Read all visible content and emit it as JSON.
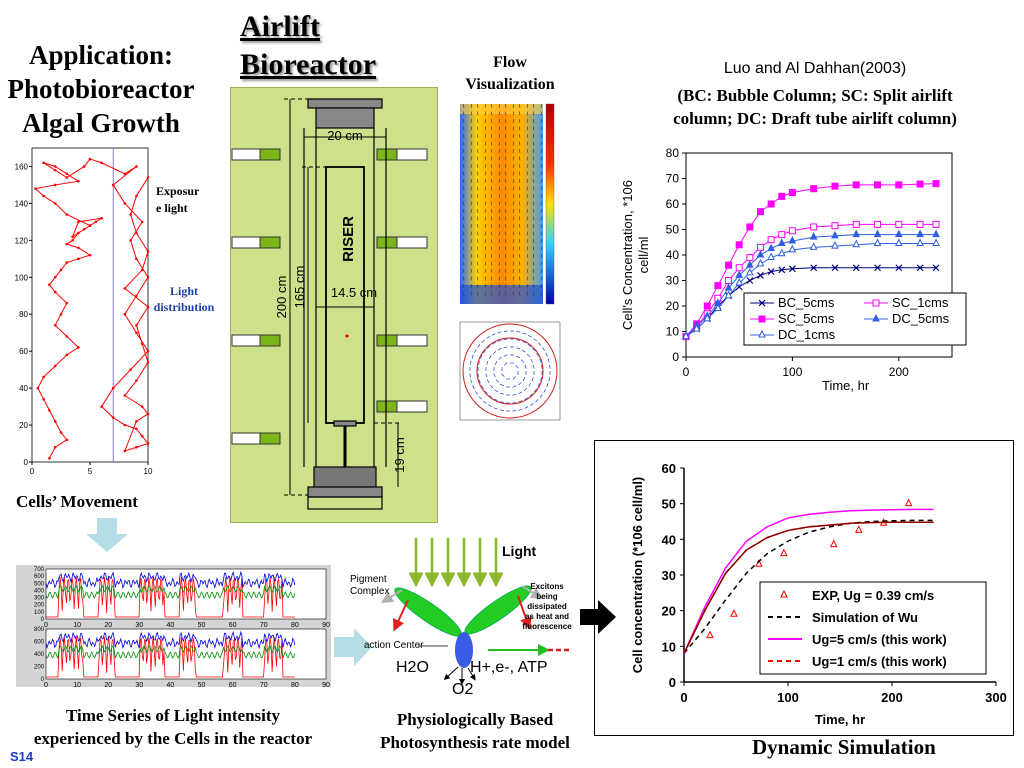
{
  "app_title": {
    "line1": "Application:",
    "line2": "Photobioreactor",
    "line3": "Algal Growth"
  },
  "reactor_title": {
    "line1": "Airlift",
    "line2": "Bioreactor"
  },
  "flow_viz": {
    "line1": "Flow",
    "line2": "Visualization"
  },
  "reference": {
    "author": "Luo and Al Dahhan(2003)",
    "line2": "(BC: Bubble Column; SC: Split airlift",
    "line3": "column; DC: Draft tube airlift column)"
  },
  "exposure_label": {
    "line1": "Exposur",
    "line2": "e light"
  },
  "light_dist_label": {
    "line1": "Light",
    "line2": "distribution"
  },
  "cells_movement": "Cells’ Movement",
  "time_series_caption": {
    "line1": "Time Series of Light intensity",
    "line2": "experienced by the Cells in the reactor"
  },
  "slide_number": "S14",
  "physio_caption": {
    "line1": "Physiologically Based",
    "line2": "Photosynthesis rate model"
  },
  "dynamic_simulation": "Dynamic Simulation",
  "reactor_labels": {
    "riser": "RISER",
    "d20": "20 cm",
    "d14": "14.5 cm",
    "h200": "200 cm",
    "h165": "165 cm",
    "h19": "19 cm"
  },
  "photosynthesis": {
    "light": "Light",
    "pigment1": "Pigment",
    "pigment2": "Complex",
    "reaction_center": "action Center",
    "excitons": [
      "Excitons",
      "being",
      "dissipated",
      "as heat and",
      "fluorescence"
    ],
    "h2o": "H2O",
    "products": "H+,e-, ATP",
    "o2": "O2"
  },
  "colors": {
    "reactor_bg": "#cde08a",
    "lamp_green": "#7cb518",
    "magenta": "#ff00ff",
    "blue": "#0000cc",
    "red": "#ff0000",
    "arrow_blue": "#b4dde6"
  },
  "chart_data": [
    {
      "type": "line",
      "title": "",
      "xlabel": "Time, hr",
      "ylabel": "Cell's Concentration, *106 cell/ml",
      "xlim": [
        0,
        250
      ],
      "ylim": [
        0,
        80
      ],
      "xticks": [
        0,
        100,
        200
      ],
      "yticks": [
        0,
        10,
        20,
        30,
        40,
        50,
        60,
        70,
        80
      ],
      "legend": "bottom-right",
      "series": [
        {
          "name": "BC_5cms",
          "marker": "x",
          "color": "#000080",
          "x": [
            0,
            10,
            20,
            30,
            40,
            50,
            60,
            70,
            80,
            90,
            100,
            120,
            140,
            160,
            180,
            200,
            220,
            235
          ],
          "y": [
            8,
            11,
            15,
            20,
            24,
            27.5,
            30,
            32,
            33.5,
            34.2,
            34.6,
            35,
            35,
            35,
            35,
            35,
            35,
            35
          ]
        },
        {
          "name": "SC_1cms",
          "marker": "square-open",
          "color": "#ff00ff",
          "x": [
            0,
            10,
            20,
            30,
            40,
            50,
            60,
            70,
            80,
            90,
            100,
            120,
            140,
            160,
            180,
            200,
            220,
            235
          ],
          "y": [
            8,
            12,
            17,
            23,
            30,
            35,
            39,
            43,
            46,
            48,
            49.5,
            51,
            51.5,
            52,
            52,
            52,
            52,
            52
          ]
        },
        {
          "name": "SC_5cms",
          "marker": "square",
          "color": "#ff00ff",
          "x": [
            0,
            10,
            20,
            30,
            40,
            50,
            60,
            70,
            80,
            90,
            100,
            120,
            140,
            160,
            180,
            200,
            220,
            235
          ],
          "y": [
            8,
            13,
            20,
            28,
            36,
            44,
            51,
            57,
            60,
            63,
            64.5,
            66,
            67,
            67.5,
            67.5,
            67.5,
            67.8,
            68
          ]
        },
        {
          "name": "DC_5cms",
          "marker": "triangle",
          "color": "#3060e0",
          "x": [
            0,
            10,
            20,
            30,
            40,
            50,
            60,
            70,
            80,
            90,
            100,
            120,
            140,
            160,
            180,
            200,
            220,
            235
          ],
          "y": [
            8,
            12,
            16,
            21,
            27,
            32,
            36,
            40,
            42.5,
            44.5,
            45.5,
            47,
            47.5,
            48,
            48,
            48,
            48,
            48
          ]
        },
        {
          "name": "DC_1cms",
          "marker": "triangle-open",
          "color": "#3060e0",
          "x": [
            0,
            10,
            20,
            30,
            40,
            50,
            60,
            70,
            80,
            90,
            100,
            120,
            140,
            160,
            180,
            200,
            220,
            235
          ],
          "y": [
            8,
            11,
            15,
            19,
            24,
            29,
            33,
            36.5,
            39,
            40.5,
            42,
            43,
            43.5,
            44,
            44.5,
            44.5,
            44.5,
            44.5
          ]
        }
      ]
    },
    {
      "type": "line",
      "title": "",
      "xlabel": "Time, hr",
      "ylabel": "Cell  concentration (*106 cell/ml)",
      "xlim": [
        0,
        300
      ],
      "ylim": [
        0,
        60
      ],
      "xticks": [
        0,
        100,
        200,
        300
      ],
      "yticks": [
        0,
        10,
        20,
        30,
        40,
        50,
        60
      ],
      "legend": "bottom-right",
      "series": [
        {
          "name": "EXP, Ug = 0.39 cm/s",
          "marker": "triangle-open",
          "color": "#ff0000",
          "x": [
            25,
            48,
            72,
            96,
            144,
            168,
            192,
            216
          ],
          "y": [
            13,
            19,
            33,
            36,
            38.5,
            42.5,
            44.5,
            50
          ]
        },
        {
          "name": "Simulation of Wu",
          "style": "dashed",
          "color": "#000000",
          "x": [
            0,
            20,
            40,
            60,
            80,
            100,
            120,
            140,
            160,
            180,
            200,
            220,
            240
          ],
          "y": [
            8,
            15,
            23,
            30.5,
            36,
            39.5,
            42,
            43.5,
            44.5,
            45,
            45.2,
            45.3,
            45.3
          ]
        },
        {
          "name": "Ug=5 cm/s (this work)",
          "style": "solid",
          "color": "#ff00ff",
          "x": [
            0,
            20,
            40,
            60,
            80,
            100,
            120,
            140,
            160,
            180,
            200,
            220,
            240
          ],
          "y": [
            8,
            21,
            32,
            39.5,
            43.5,
            46,
            47,
            47.6,
            48,
            48.2,
            48.3,
            48.4,
            48.4
          ]
        },
        {
          "name": "Ug=1 cm/s (this work)",
          "style": "dashed",
          "color": "#ff0000",
          "x": [
            0,
            20,
            40,
            60,
            80,
            100,
            120,
            140,
            160,
            180,
            200,
            220,
            240
          ],
          "y": [
            8,
            20,
            30.5,
            37,
            40.5,
            42.5,
            43.5,
            44,
            44.5,
            44.7,
            44.8,
            44.8,
            44.8
          ]
        },
        {
          "name": "",
          "style": "solid",
          "color": "#8b0000",
          "x": [
            0,
            20,
            40,
            60,
            80,
            100,
            120,
            140,
            160,
            180,
            200,
            220,
            240
          ],
          "y": [
            8,
            20,
            30.5,
            37,
            40.5,
            42.5,
            43.5,
            44,
            44.5,
            44.7,
            44.8,
            44.8,
            44.8
          ]
        }
      ]
    },
    {
      "type": "scatter",
      "title": "",
      "xlabel": "",
      "ylabel": "",
      "xlim": [
        0,
        10
      ],
      "ylim": [
        0,
        170
      ],
      "xticks": [
        0,
        5,
        10
      ],
      "yticks": [
        0,
        20,
        40,
        60,
        80,
        100,
        120,
        140,
        160
      ],
      "series": [
        {
          "name": "",
          "color": "#ff0000",
          "x": [
            1.5,
            2,
            3,
            2.5,
            2,
            1.5,
            1,
            0.5,
            1,
            2,
            3,
            4,
            3,
            2,
            2.5,
            3,
            2,
            1.5,
            2,
            2.5,
            3,
            4,
            5,
            4,
            3,
            3.5,
            4,
            5,
            5.5,
            4.5,
            3.5,
            4,
            6,
            5,
            3,
            2,
            1,
            0.3,
            2,
            4,
            3,
            2,
            1,
            2,
            3,
            4.5,
            5,
            6,
            8,
            9,
            7,
            8,
            9.5,
            8.5,
            9,
            10,
            9,
            8,
            9,
            10,
            8.5,
            7,
            6,
            7,
            8,
            9,
            9.5,
            10,
            9,
            8,
            9,
            10,
            9.5,
            8,
            9,
            10,
            9.5,
            9,
            10,
            8,
            9.5,
            10,
            9,
            8.5,
            9,
            10
          ],
          "y": [
            2,
            8,
            12,
            16,
            22,
            28,
            34,
            40,
            46,
            52,
            58,
            62,
            68,
            74,
            80,
            86,
            92,
            96,
            100,
            104,
            108,
            110,
            112,
            116,
            118,
            120,
            124,
            128,
            130,
            126,
            122,
            130,
            132,
            128,
            134,
            140,
            144,
            148,
            150,
            152,
            156,
            160,
            162,
            158,
            154,
            160,
            164,
            162,
            156,
            160,
            150,
            140,
            130,
            120,
            110,
            100,
            90,
            80,
            70,
            60,
            50,
            40,
            30,
            24,
            20,
            18,
            14,
            10,
            8,
            6,
            22,
            26,
            30,
            36,
            44,
            54,
            64,
            74,
            84,
            94,
            104,
            114,
            124,
            134,
            144,
            154
          ]
        }
      ]
    }
  ]
}
